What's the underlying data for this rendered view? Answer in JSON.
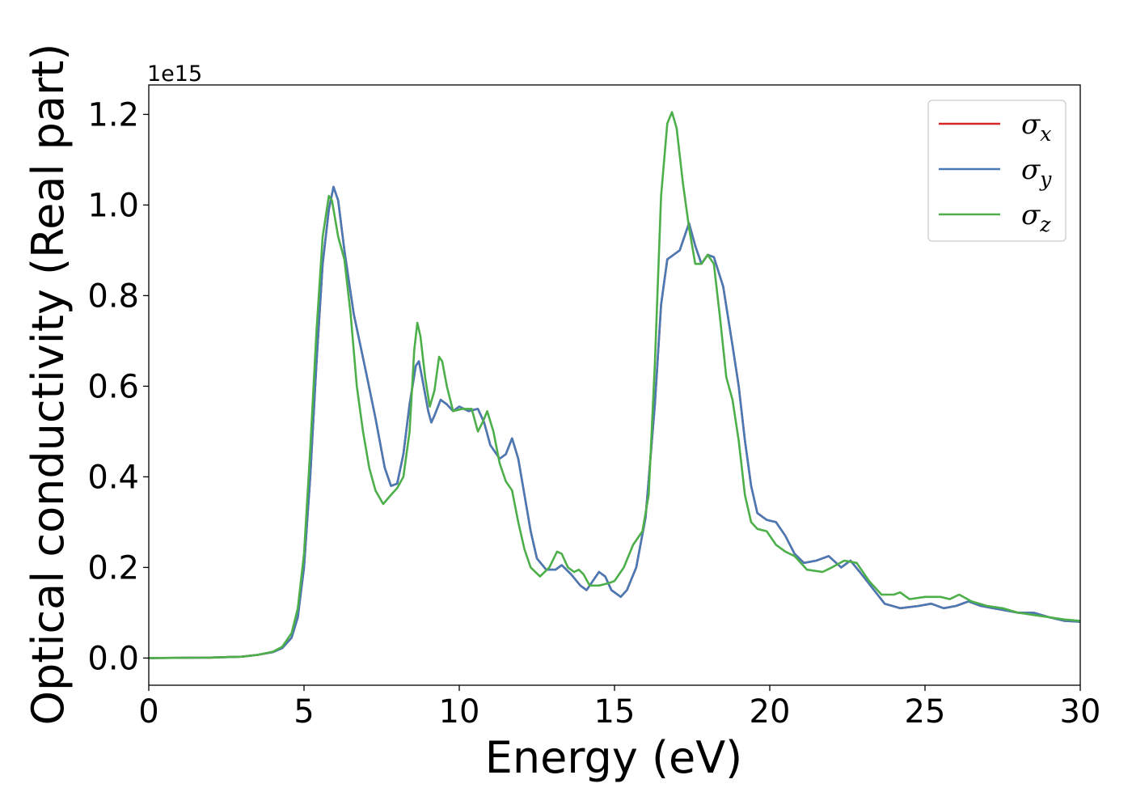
{
  "chart_data": {
    "type": "line",
    "title": "",
    "xlabel": "Energy (eV)",
    "ylabel": "Optical conductivity (Real part)",
    "y_offset_label": "1e15",
    "xlim": [
      0,
      30
    ],
    "ylim": [
      -0.06,
      1.265
    ],
    "xticks": [
      0,
      5,
      10,
      15,
      20,
      25,
      30
    ],
    "yticks": [
      0.0,
      0.2,
      0.4,
      0.6,
      0.8,
      1.0,
      1.2
    ],
    "xtick_labels": [
      "0",
      "5",
      "10",
      "15",
      "20",
      "25",
      "30"
    ],
    "ytick_labels": [
      "0.0",
      "0.2",
      "0.4",
      "0.6",
      "0.8",
      "1.0",
      "1.2"
    ],
    "grid": false,
    "legend_position": "top-right",
    "legend": [
      {
        "symbol": "σ",
        "sub": "x",
        "color": "#d62728"
      },
      {
        "symbol": "σ",
        "sub": "y",
        "color": "#4a7ab5"
      },
      {
        "symbol": "σ",
        "sub": "z",
        "color": "#4daf4a"
      }
    ],
    "series": [
      {
        "key": "sx",
        "color": "#d62728",
        "points": [
          [
            0,
            0
          ],
          [
            2,
            0.001
          ],
          [
            3,
            0.003
          ],
          [
            3.5,
            0.007
          ],
          [
            4,
            0.013
          ],
          [
            4.3,
            0.022
          ],
          [
            4.6,
            0.045
          ],
          [
            4.8,
            0.09
          ],
          [
            5.0,
            0.2
          ],
          [
            5.2,
            0.4
          ],
          [
            5.4,
            0.65
          ],
          [
            5.6,
            0.87
          ],
          [
            5.8,
            0.99
          ],
          [
            5.95,
            1.04
          ],
          [
            6.1,
            1.01
          ],
          [
            6.3,
            0.9
          ],
          [
            6.6,
            0.76
          ],
          [
            7.0,
            0.63
          ],
          [
            7.3,
            0.53
          ],
          [
            7.6,
            0.42
          ],
          [
            7.8,
            0.38
          ],
          [
            8.0,
            0.385
          ],
          [
            8.2,
            0.45
          ],
          [
            8.4,
            0.56
          ],
          [
            8.6,
            0.645
          ],
          [
            8.7,
            0.655
          ],
          [
            8.8,
            0.62
          ],
          [
            9.0,
            0.545
          ],
          [
            9.1,
            0.52
          ],
          [
            9.2,
            0.535
          ],
          [
            9.4,
            0.57
          ],
          [
            9.6,
            0.56
          ],
          [
            9.8,
            0.545
          ],
          [
            10.0,
            0.555
          ],
          [
            10.3,
            0.545
          ],
          [
            10.6,
            0.55
          ],
          [
            10.8,
            0.52
          ],
          [
            11.0,
            0.47
          ],
          [
            11.3,
            0.44
          ],
          [
            11.5,
            0.45
          ],
          [
            11.7,
            0.485
          ],
          [
            11.9,
            0.44
          ],
          [
            12.1,
            0.36
          ],
          [
            12.3,
            0.28
          ],
          [
            12.5,
            0.22
          ],
          [
            12.8,
            0.195
          ],
          [
            13.1,
            0.195
          ],
          [
            13.3,
            0.205
          ],
          [
            13.6,
            0.185
          ],
          [
            13.9,
            0.16
          ],
          [
            14.1,
            0.15
          ],
          [
            14.3,
            0.17
          ],
          [
            14.5,
            0.19
          ],
          [
            14.7,
            0.18
          ],
          [
            14.9,
            0.15
          ],
          [
            15.2,
            0.135
          ],
          [
            15.4,
            0.15
          ],
          [
            15.7,
            0.2
          ],
          [
            16.0,
            0.31
          ],
          [
            16.3,
            0.56
          ],
          [
            16.5,
            0.78
          ],
          [
            16.7,
            0.88
          ],
          [
            16.9,
            0.89
          ],
          [
            17.1,
            0.9
          ],
          [
            17.4,
            0.96
          ],
          [
            17.6,
            0.91
          ],
          [
            17.8,
            0.87
          ],
          [
            18.0,
            0.89
          ],
          [
            18.2,
            0.885
          ],
          [
            18.5,
            0.82
          ],
          [
            18.8,
            0.69
          ],
          [
            19.0,
            0.6
          ],
          [
            19.2,
            0.48
          ],
          [
            19.4,
            0.38
          ],
          [
            19.6,
            0.32
          ],
          [
            19.9,
            0.305
          ],
          [
            20.2,
            0.3
          ],
          [
            20.5,
            0.27
          ],
          [
            20.8,
            0.23
          ],
          [
            21.1,
            0.21
          ],
          [
            21.5,
            0.215
          ],
          [
            21.9,
            0.225
          ],
          [
            22.3,
            0.2
          ],
          [
            22.6,
            0.215
          ],
          [
            22.9,
            0.19
          ],
          [
            23.3,
            0.155
          ],
          [
            23.7,
            0.12
          ],
          [
            24.2,
            0.11
          ],
          [
            24.8,
            0.115
          ],
          [
            25.2,
            0.12
          ],
          [
            25.6,
            0.11
          ],
          [
            26.0,
            0.115
          ],
          [
            26.4,
            0.125
          ],
          [
            26.8,
            0.115
          ],
          [
            27.2,
            0.11
          ],
          [
            27.6,
            0.105
          ],
          [
            28.0,
            0.1
          ],
          [
            28.5,
            0.1
          ],
          [
            29.0,
            0.09
          ],
          [
            29.5,
            0.082
          ],
          [
            30,
            0.08
          ]
        ]
      },
      {
        "key": "sy",
        "color": "#4a7ab5",
        "points": [
          [
            0,
            0
          ],
          [
            2,
            0.001
          ],
          [
            3,
            0.003
          ],
          [
            3.5,
            0.007
          ],
          [
            4,
            0.013
          ],
          [
            4.3,
            0.022
          ],
          [
            4.6,
            0.045
          ],
          [
            4.8,
            0.09
          ],
          [
            5.0,
            0.2
          ],
          [
            5.2,
            0.4
          ],
          [
            5.4,
            0.65
          ],
          [
            5.6,
            0.87
          ],
          [
            5.8,
            0.99
          ],
          [
            5.95,
            1.04
          ],
          [
            6.1,
            1.01
          ],
          [
            6.3,
            0.9
          ],
          [
            6.6,
            0.76
          ],
          [
            7.0,
            0.63
          ],
          [
            7.3,
            0.53
          ],
          [
            7.6,
            0.42
          ],
          [
            7.8,
            0.38
          ],
          [
            8.0,
            0.385
          ],
          [
            8.2,
            0.45
          ],
          [
            8.4,
            0.56
          ],
          [
            8.6,
            0.645
          ],
          [
            8.7,
            0.655
          ],
          [
            8.8,
            0.62
          ],
          [
            9.0,
            0.545
          ],
          [
            9.1,
            0.52
          ],
          [
            9.2,
            0.535
          ],
          [
            9.4,
            0.57
          ],
          [
            9.6,
            0.56
          ],
          [
            9.8,
            0.545
          ],
          [
            10.0,
            0.555
          ],
          [
            10.3,
            0.545
          ],
          [
            10.6,
            0.55
          ],
          [
            10.8,
            0.52
          ],
          [
            11.0,
            0.47
          ],
          [
            11.3,
            0.44
          ],
          [
            11.5,
            0.45
          ],
          [
            11.7,
            0.485
          ],
          [
            11.9,
            0.44
          ],
          [
            12.1,
            0.36
          ],
          [
            12.3,
            0.28
          ],
          [
            12.5,
            0.22
          ],
          [
            12.8,
            0.195
          ],
          [
            13.1,
            0.195
          ],
          [
            13.3,
            0.205
          ],
          [
            13.6,
            0.185
          ],
          [
            13.9,
            0.16
          ],
          [
            14.1,
            0.15
          ],
          [
            14.3,
            0.17
          ],
          [
            14.5,
            0.19
          ],
          [
            14.7,
            0.18
          ],
          [
            14.9,
            0.15
          ],
          [
            15.2,
            0.135
          ],
          [
            15.4,
            0.15
          ],
          [
            15.7,
            0.2
          ],
          [
            16.0,
            0.31
          ],
          [
            16.3,
            0.56
          ],
          [
            16.5,
            0.78
          ],
          [
            16.7,
            0.88
          ],
          [
            16.9,
            0.89
          ],
          [
            17.1,
            0.9
          ],
          [
            17.4,
            0.96
          ],
          [
            17.6,
            0.91
          ],
          [
            17.8,
            0.87
          ],
          [
            18.0,
            0.89
          ],
          [
            18.2,
            0.885
          ],
          [
            18.5,
            0.82
          ],
          [
            18.8,
            0.69
          ],
          [
            19.0,
            0.6
          ],
          [
            19.2,
            0.48
          ],
          [
            19.4,
            0.38
          ],
          [
            19.6,
            0.32
          ],
          [
            19.9,
            0.305
          ],
          [
            20.2,
            0.3
          ],
          [
            20.5,
            0.27
          ],
          [
            20.8,
            0.23
          ],
          [
            21.1,
            0.21
          ],
          [
            21.5,
            0.215
          ],
          [
            21.9,
            0.225
          ],
          [
            22.3,
            0.2
          ],
          [
            22.6,
            0.215
          ],
          [
            22.9,
            0.19
          ],
          [
            23.3,
            0.155
          ],
          [
            23.7,
            0.12
          ],
          [
            24.2,
            0.11
          ],
          [
            24.8,
            0.115
          ],
          [
            25.2,
            0.12
          ],
          [
            25.6,
            0.11
          ],
          [
            26.0,
            0.115
          ],
          [
            26.4,
            0.125
          ],
          [
            26.8,
            0.115
          ],
          [
            27.2,
            0.11
          ],
          [
            27.6,
            0.105
          ],
          [
            28.0,
            0.1
          ],
          [
            28.5,
            0.1
          ],
          [
            29.0,
            0.09
          ],
          [
            29.5,
            0.082
          ],
          [
            30,
            0.08
          ]
        ]
      },
      {
        "key": "sz",
        "color": "#4daf4a",
        "points": [
          [
            0,
            0
          ],
          [
            2,
            0.001
          ],
          [
            3,
            0.003
          ],
          [
            3.5,
            0.007
          ],
          [
            4,
            0.014
          ],
          [
            4.3,
            0.025
          ],
          [
            4.6,
            0.055
          ],
          [
            4.8,
            0.11
          ],
          [
            5.0,
            0.23
          ],
          [
            5.2,
            0.46
          ],
          [
            5.4,
            0.72
          ],
          [
            5.6,
            0.93
          ],
          [
            5.8,
            1.02
          ],
          [
            5.9,
            1.01
          ],
          [
            6.0,
            0.97
          ],
          [
            6.1,
            0.93
          ],
          [
            6.3,
            0.88
          ],
          [
            6.5,
            0.76
          ],
          [
            6.7,
            0.6
          ],
          [
            6.9,
            0.5
          ],
          [
            7.1,
            0.42
          ],
          [
            7.3,
            0.37
          ],
          [
            7.55,
            0.34
          ],
          [
            7.8,
            0.36
          ],
          [
            8.0,
            0.375
          ],
          [
            8.2,
            0.4
          ],
          [
            8.4,
            0.5
          ],
          [
            8.55,
            0.68
          ],
          [
            8.65,
            0.74
          ],
          [
            8.75,
            0.71
          ],
          [
            8.9,
            0.62
          ],
          [
            9.05,
            0.555
          ],
          [
            9.2,
            0.59
          ],
          [
            9.35,
            0.665
          ],
          [
            9.45,
            0.655
          ],
          [
            9.6,
            0.6
          ],
          [
            9.8,
            0.545
          ],
          [
            10.1,
            0.55
          ],
          [
            10.4,
            0.55
          ],
          [
            10.6,
            0.5
          ],
          [
            10.75,
            0.52
          ],
          [
            10.9,
            0.545
          ],
          [
            11.1,
            0.5
          ],
          [
            11.3,
            0.43
          ],
          [
            11.5,
            0.39
          ],
          [
            11.7,
            0.37
          ],
          [
            11.9,
            0.3
          ],
          [
            12.1,
            0.24
          ],
          [
            12.3,
            0.2
          ],
          [
            12.6,
            0.18
          ],
          [
            12.9,
            0.2
          ],
          [
            13.15,
            0.235
          ],
          [
            13.3,
            0.23
          ],
          [
            13.5,
            0.2
          ],
          [
            13.7,
            0.19
          ],
          [
            13.85,
            0.195
          ],
          [
            14.0,
            0.185
          ],
          [
            14.2,
            0.16
          ],
          [
            14.5,
            0.16
          ],
          [
            14.8,
            0.165
          ],
          [
            15.0,
            0.17
          ],
          [
            15.3,
            0.2
          ],
          [
            15.6,
            0.25
          ],
          [
            15.9,
            0.28
          ],
          [
            16.1,
            0.36
          ],
          [
            16.3,
            0.65
          ],
          [
            16.5,
            1.02
          ],
          [
            16.7,
            1.18
          ],
          [
            16.85,
            1.205
          ],
          [
            17.0,
            1.17
          ],
          [
            17.2,
            1.05
          ],
          [
            17.4,
            0.95
          ],
          [
            17.6,
            0.87
          ],
          [
            17.8,
            0.87
          ],
          [
            18.0,
            0.89
          ],
          [
            18.2,
            0.87
          ],
          [
            18.4,
            0.75
          ],
          [
            18.6,
            0.62
          ],
          [
            18.8,
            0.57
          ],
          [
            19.0,
            0.48
          ],
          [
            19.2,
            0.36
          ],
          [
            19.4,
            0.3
          ],
          [
            19.6,
            0.285
          ],
          [
            19.9,
            0.28
          ],
          [
            20.2,
            0.25
          ],
          [
            20.5,
            0.235
          ],
          [
            20.8,
            0.225
          ],
          [
            21.2,
            0.195
          ],
          [
            21.7,
            0.19
          ],
          [
            22.0,
            0.2
          ],
          [
            22.4,
            0.215
          ],
          [
            22.8,
            0.21
          ],
          [
            23.2,
            0.17
          ],
          [
            23.6,
            0.14
          ],
          [
            24.0,
            0.14
          ],
          [
            24.2,
            0.145
          ],
          [
            24.5,
            0.13
          ],
          [
            25.0,
            0.135
          ],
          [
            25.5,
            0.135
          ],
          [
            25.8,
            0.13
          ],
          [
            26.1,
            0.14
          ],
          [
            26.5,
            0.125
          ],
          [
            27.0,
            0.115
          ],
          [
            27.5,
            0.11
          ],
          [
            28.0,
            0.1
          ],
          [
            28.5,
            0.095
          ],
          [
            29.0,
            0.09
          ],
          [
            29.5,
            0.085
          ],
          [
            30,
            0.082
          ]
        ]
      }
    ]
  }
}
